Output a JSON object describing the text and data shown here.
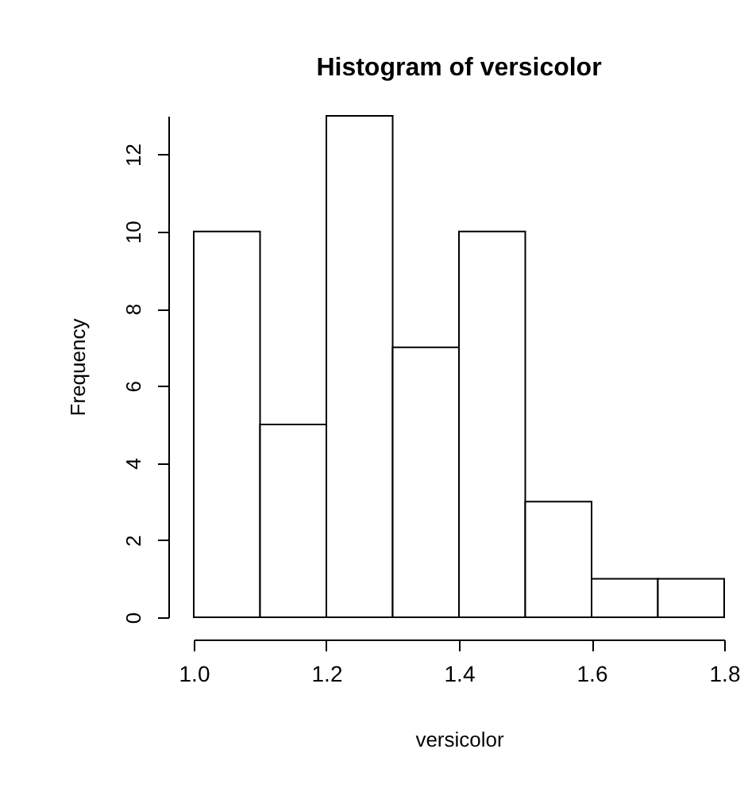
{
  "chart_data": {
    "type": "histogram",
    "title": "Histogram of versicolor",
    "xlabel": "versicolor",
    "ylabel": "Frequency",
    "bins": [
      1.0,
      1.1,
      1.2,
      1.3,
      1.4,
      1.5,
      1.6,
      1.7,
      1.8
    ],
    "values": [
      10,
      5,
      13,
      7,
      10,
      3,
      1,
      1
    ],
    "color": "#ffffff",
    "xlim": [
      1.0,
      1.8
    ],
    "xticks": [
      {
        "value": 1.0,
        "label": "1.0"
      },
      1.2,
      1.4,
      1.6,
      1.8
    ],
    "ylim": [
      0,
      13
    ],
    "yticks": [
      0,
      2,
      4,
      6,
      8,
      10,
      12
    ],
    "grid": false
  }
}
